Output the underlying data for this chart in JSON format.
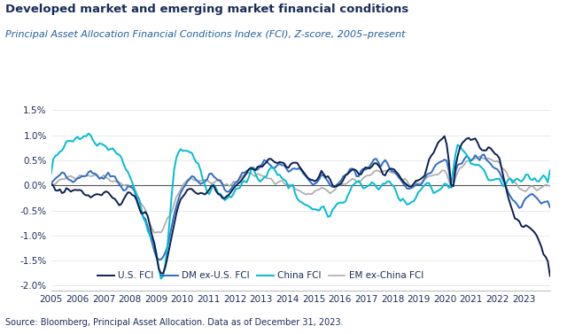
{
  "title": "Developed market and emerging market financial conditions",
  "subtitle": "Principal Asset Allocation Financial Conditions Index (FCI), Z-score, 2005–present",
  "source": "Source: Bloomberg, Principal Asset Allocation. Data as of December 31, 2023.",
  "title_color": "#1a2d5a",
  "subtitle_color": "#2060a0",
  "background_color": "#ffffff",
  "ylim": [
    -2.1,
    1.7
  ],
  "ytick_vals": [
    -2.0,
    -1.5,
    -1.0,
    -0.5,
    0.0,
    0.5,
    1.0,
    1.5
  ],
  "ytick_labels": [
    "-2.0%",
    "-1.5%",
    "-1.0%",
    "-0.5%",
    "0.0%",
    "0.5%",
    "1.0%",
    "1.5%"
  ],
  "legend": [
    "U.S. FCI",
    "DM ex-U.S. FCI",
    "China FCI",
    "EM ex-China FCI"
  ],
  "colors": {
    "US": "#0d1f4e",
    "DM": "#2e6fc4",
    "China": "#00bcd4",
    "EM": "#aaaaaa"
  },
  "line_widths": {
    "US": 1.4,
    "DM": 1.4,
    "China": 1.4,
    "EM": 1.2
  }
}
